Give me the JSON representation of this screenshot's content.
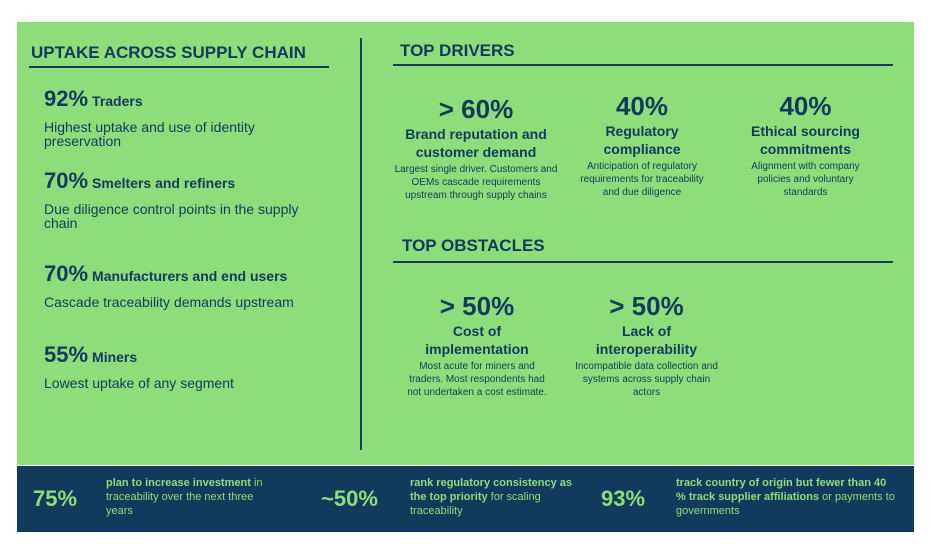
{
  "uptake": {
    "title": "UPTAKE ACROSS SUPPLY CHAIN",
    "segments": [
      {
        "pct": "92%",
        "label": "Traders",
        "desc": "Highest uptake and use of identity preservation"
      },
      {
        "pct": "70%",
        "label": "Smelters and refiners",
        "desc": "Due diligence control points in the supply chain"
      },
      {
        "pct": "70%",
        "label": "Manufacturers and end users",
        "desc": "Cascade traceability demands upstream"
      },
      {
        "pct": "55%",
        "label": "Miners",
        "desc": "Lowest uptake of any segment"
      }
    ]
  },
  "drivers": {
    "title": "TOP DRIVERS",
    "items": [
      {
        "big": "> 60%",
        "title": "Brand reputation and customer demand",
        "desc": "Largest single driver. Customers and OEMs cascade requirements upstream through supply chains"
      },
      {
        "big": "40%",
        "title": "Regulatory compliance",
        "desc": "Anticipation of regulatory requirements for traceability and due diligence"
      },
      {
        "big": "40%",
        "title": "Ethical sourcing commitments",
        "desc": "Alignment with company policies and voluntary standards"
      }
    ]
  },
  "obstacles": {
    "title": "TOP OBSTACLES",
    "items": [
      {
        "big": "> 50%",
        "title": "Cost of implementation",
        "desc": "Most acute for miners and traders. Most respondents had not undertaken a cost estimate."
      },
      {
        "big": "> 50%",
        "title": "Lack of interoperability",
        "desc": "Incompatible data collection and systems across supply chain actors"
      }
    ]
  },
  "bottom": [
    {
      "stat": "75%",
      "bold": "plan to increase investment",
      "rest": " in traceability over the next three years"
    },
    {
      "stat": "~50%",
      "bold": "rank regulatory consistency as the top priority",
      "rest": " for scaling traceability"
    },
    {
      "stat": "93%",
      "bold": "track country of origin but fewer than 40 % track supplier affiliations",
      "rest": " or payments to governments"
    }
  ]
}
